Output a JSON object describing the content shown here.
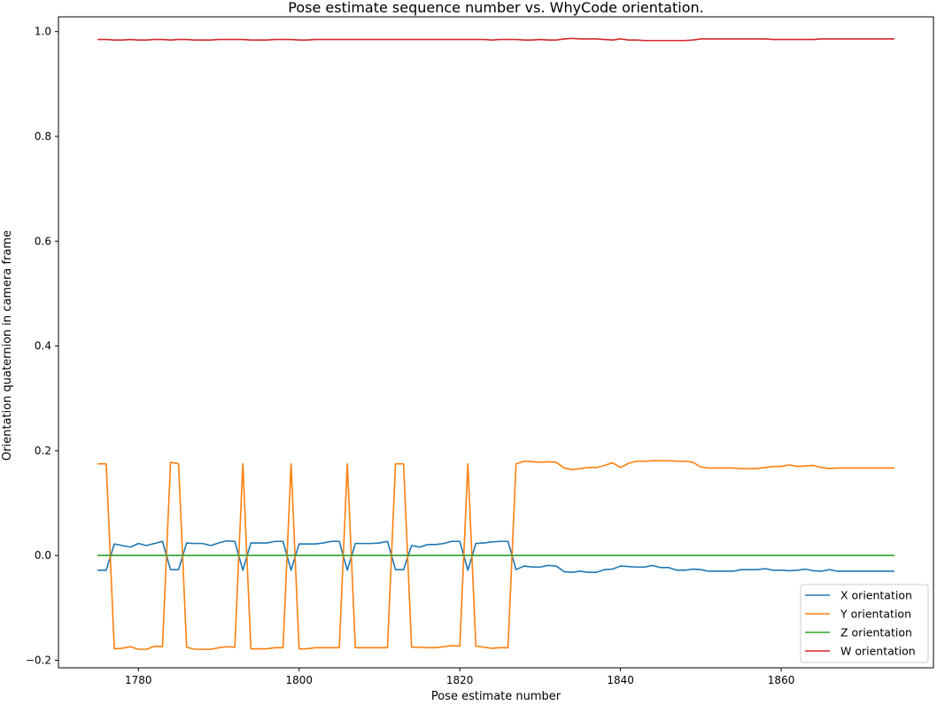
{
  "chart_data": {
    "type": "line",
    "title": "Pose estimate sequence number vs. WhyCode orientation.",
    "xlabel": "Pose estimate number",
    "ylabel": "Orientation quaternion in camera frame",
    "xlim": [
      1770.05,
      1878.95
    ],
    "ylim": [
      -0.2143,
      1.0282
    ],
    "xticks": [
      1780,
      1800,
      1820,
      1840,
      1860
    ],
    "xtick_labels": [
      "1780",
      "1800",
      "1820",
      "1840",
      "1860"
    ],
    "yticks": [
      -0.2,
      0.0,
      0.2,
      0.4,
      0.6,
      0.8,
      1.0
    ],
    "ytick_labels": [
      "−0.2",
      "0.0",
      "0.2",
      "0.4",
      "0.6",
      "0.8",
      "1.0"
    ],
    "grid": false,
    "legend_position": "lower right",
    "x_start": 1775,
    "x_end": 1874,
    "series": [
      {
        "name": "X orientation",
        "color": "#1f77b4",
        "values": [
          -0.028,
          -0.028,
          0.022,
          0.019,
          0.016,
          0.023,
          0.019,
          0.023,
          0.027,
          -0.027,
          -0.027,
          0.024,
          0.023,
          0.023,
          0.019,
          0.024,
          0.028,
          0.027,
          -0.028,
          0.024,
          0.024,
          0.024,
          0.027,
          0.027,
          -0.028,
          0.022,
          0.022,
          0.022,
          0.024,
          0.027,
          0.027,
          -0.028,
          0.023,
          0.023,
          0.023,
          0.024,
          0.027,
          -0.027,
          -0.027,
          0.019,
          0.016,
          0.021,
          0.021,
          0.023,
          0.027,
          0.027,
          -0.028,
          0.023,
          0.024,
          0.026,
          0.027,
          0.027,
          -0.027,
          -0.02,
          -0.022,
          -0.022,
          -0.019,
          -0.02,
          -0.031,
          -0.032,
          -0.03,
          -0.032,
          -0.032,
          -0.027,
          -0.026,
          -0.02,
          -0.021,
          -0.022,
          -0.022,
          -0.019,
          -0.023,
          -0.023,
          -0.028,
          -0.028,
          -0.026,
          -0.027,
          -0.03,
          -0.03,
          -0.03,
          -0.03,
          -0.027,
          -0.027,
          -0.027,
          -0.025,
          -0.028,
          -0.028,
          -0.029,
          -0.028,
          -0.026,
          -0.029,
          -0.03,
          -0.027,
          -0.03,
          -0.03,
          -0.03,
          -0.03,
          -0.03,
          -0.03,
          -0.03,
          -0.03
        ]
      },
      {
        "name": "Y orientation",
        "color": "#ff7f0e",
        "values": [
          0.175,
          0.175,
          -0.178,
          -0.177,
          -0.174,
          -0.179,
          -0.179,
          -0.173,
          -0.174,
          0.178,
          0.175,
          -0.175,
          -0.179,
          -0.179,
          -0.179,
          -0.176,
          -0.174,
          -0.175,
          0.175,
          -0.178,
          -0.178,
          -0.178,
          -0.176,
          -0.176,
          0.175,
          -0.178,
          -0.178,
          -0.176,
          -0.176,
          -0.176,
          -0.176,
          0.175,
          -0.176,
          -0.176,
          -0.176,
          -0.176,
          -0.176,
          0.175,
          0.175,
          -0.175,
          -0.175,
          -0.176,
          -0.176,
          -0.174,
          -0.172,
          -0.173,
          0.175,
          -0.173,
          -0.175,
          -0.177,
          -0.176,
          -0.176,
          0.175,
          0.18,
          0.179,
          0.178,
          0.179,
          0.178,
          0.167,
          0.164,
          0.166,
          0.168,
          0.168,
          0.172,
          0.177,
          0.168,
          0.176,
          0.18,
          0.18,
          0.181,
          0.181,
          0.181,
          0.18,
          0.18,
          0.178,
          0.169,
          0.167,
          0.167,
          0.167,
          0.167,
          0.166,
          0.166,
          0.166,
          0.168,
          0.17,
          0.17,
          0.173,
          0.17,
          0.171,
          0.172,
          0.168,
          0.166,
          0.167,
          0.167,
          0.167,
          0.167,
          0.167,
          0.167,
          0.167,
          0.167
        ]
      },
      {
        "name": "Z orientation",
        "color": "#2ca02c",
        "values": [
          0.0,
          0.0,
          0.0,
          0.0,
          0.0,
          0.0,
          0.0,
          0.0,
          0.0,
          0.0,
          0.0,
          0.0,
          0.0,
          0.0,
          0.0,
          0.0,
          0.0,
          0.0,
          0.0,
          0.0,
          0.0,
          0.0,
          0.0,
          0.0,
          0.0,
          0.0,
          0.0,
          0.0,
          0.0,
          0.0,
          0.0,
          0.0,
          0.0,
          0.0,
          0.0,
          0.0,
          0.0,
          0.0,
          0.0,
          0.0,
          0.0,
          0.0,
          0.0,
          0.0,
          0.0,
          0.0,
          0.0,
          0.0,
          0.0,
          0.0,
          0.0,
          0.0,
          0.0,
          0.0,
          0.0,
          0.0,
          0.0,
          0.0,
          0.0,
          0.0,
          0.0,
          0.0,
          0.0,
          0.0,
          0.0,
          0.0,
          0.0,
          0.0,
          0.0,
          0.0,
          0.0,
          0.0,
          0.0,
          0.0,
          0.0,
          0.0,
          0.0,
          0.0,
          0.0,
          0.0,
          0.0,
          0.0,
          0.0,
          0.0,
          0.0,
          0.0,
          0.0,
          0.0,
          0.0,
          0.0,
          0.0,
          0.0,
          0.0,
          0.0,
          0.0,
          0.0,
          0.0,
          0.0,
          0.0,
          0.0
        ]
      },
      {
        "name": "W orientation",
        "color": "#d62728",
        "values": [
          0.985,
          0.985,
          0.984,
          0.984,
          0.985,
          0.984,
          0.984,
          0.985,
          0.985,
          0.984,
          0.985,
          0.985,
          0.984,
          0.984,
          0.984,
          0.985,
          0.985,
          0.985,
          0.985,
          0.984,
          0.984,
          0.984,
          0.985,
          0.985,
          0.985,
          0.984,
          0.984,
          0.985,
          0.985,
          0.985,
          0.985,
          0.985,
          0.985,
          0.985,
          0.985,
          0.985,
          0.985,
          0.985,
          0.985,
          0.985,
          0.985,
          0.985,
          0.985,
          0.985,
          0.985,
          0.985,
          0.985,
          0.985,
          0.985,
          0.984,
          0.985,
          0.985,
          0.985,
          0.984,
          0.984,
          0.985,
          0.984,
          0.984,
          0.986,
          0.987,
          0.986,
          0.986,
          0.986,
          0.985,
          0.984,
          0.986,
          0.984,
          0.984,
          0.983,
          0.983,
          0.983,
          0.983,
          0.983,
          0.983,
          0.984,
          0.986,
          0.986,
          0.986,
          0.986,
          0.986,
          0.986,
          0.986,
          0.986,
          0.986,
          0.985,
          0.985,
          0.985,
          0.985,
          0.985,
          0.985,
          0.986,
          0.986,
          0.986,
          0.986,
          0.986,
          0.986,
          0.986,
          0.986,
          0.986,
          0.986
        ]
      }
    ]
  }
}
